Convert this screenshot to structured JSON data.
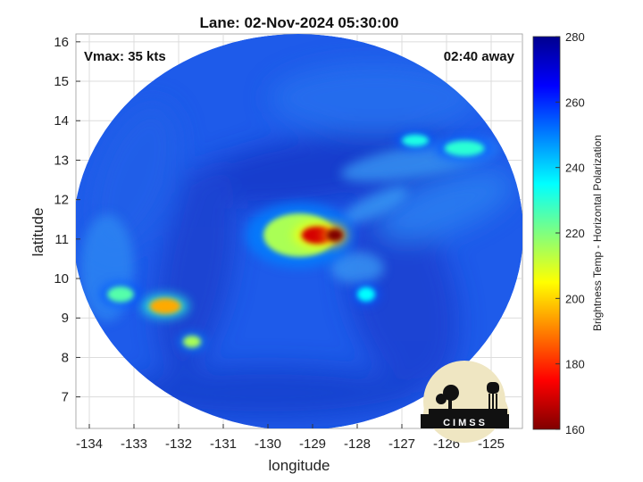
{
  "chart_data": {
    "type": "heatmap",
    "title": "Lane: 02-Nov-2024 05:30:00",
    "xlabel": "longitude",
    "ylabel": "latitude",
    "xlim": [
      -134.3,
      -124.3
    ],
    "ylim": [
      6.2,
      16.2
    ],
    "xticks": [
      -134,
      -133,
      -132,
      -131,
      -130,
      -129,
      -128,
      -127,
      -126,
      -125
    ],
    "yticks": [
      7,
      8,
      9,
      10,
      11,
      12,
      13,
      14,
      15,
      16
    ],
    "grid": true,
    "annotations": {
      "vmax": "Vmax: 35 kts",
      "time_away": "02:40 away"
    },
    "colorbar": {
      "label": "Brightness Temp - Horizontal Polarization",
      "min": 160,
      "max": 280,
      "ticks": [
        160,
        180,
        200,
        220,
        240,
        260,
        280
      ],
      "colormap": "jet"
    },
    "features": [
      {
        "lon": -129.3,
        "lat": 11.1,
        "rx": 0.8,
        "ry": 0.55,
        "temp": 215
      },
      {
        "lon": -128.9,
        "lat": 11.1,
        "rx": 0.35,
        "ry": 0.22,
        "temp": 170
      },
      {
        "lon": -128.5,
        "lat": 11.1,
        "rx": 0.18,
        "ry": 0.16,
        "temp": 160
      },
      {
        "lon": -132.3,
        "lat": 9.3,
        "rx": 0.35,
        "ry": 0.2,
        "temp": 195
      },
      {
        "lon": -133.3,
        "lat": 9.6,
        "rx": 0.3,
        "ry": 0.2,
        "temp": 225
      },
      {
        "lon": -131.7,
        "lat": 8.4,
        "rx": 0.2,
        "ry": 0.15,
        "temp": 215
      },
      {
        "lon": -125.6,
        "lat": 13.3,
        "rx": 0.45,
        "ry": 0.2,
        "temp": 230
      },
      {
        "lon": -126.7,
        "lat": 13.5,
        "rx": 0.3,
        "ry": 0.15,
        "temp": 232
      },
      {
        "lon": -127.8,
        "lat": 9.6,
        "rx": 0.2,
        "ry": 0.18,
        "temp": 235
      }
    ],
    "logo_text": "CIMSS"
  },
  "colors": {
    "jet_dark_red": "#800000",
    "jet_red": "#ff0000",
    "jet_yellow": "#ffff00",
    "jet_cyan": "#00ffff",
    "jet_blue": "#0000ff",
    "jet_dark_blue": "#00008f",
    "scan_background": "#1e5bea",
    "grid": "#dcdcdc",
    "logo_bg": "#efe6c2"
  }
}
